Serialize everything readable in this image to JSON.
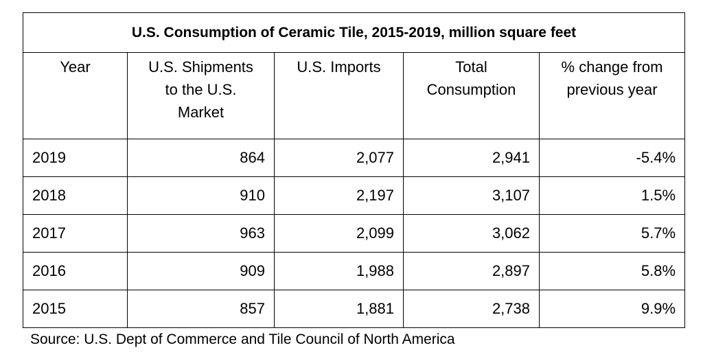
{
  "table": {
    "title": "U.S. Consumption of Ceramic Tile, 2015-2019, million square feet",
    "headers": [
      "Year",
      "U.S. Shipments\nto the U.S.\nMarket",
      "U.S. Imports",
      "Total\nConsumption",
      "% change from\nprevious year"
    ],
    "rows": [
      [
        "2019",
        "864",
        "2,077",
        "2,941",
        "-5.4%"
      ],
      [
        "2018",
        "910",
        "2,197",
        "3,107",
        "1.5%"
      ],
      [
        "2017",
        "963",
        "2,099",
        "3,062",
        "5.7%"
      ],
      [
        "2016",
        "909",
        "1,988",
        "2,897",
        "5.8%"
      ],
      [
        "2015",
        "857",
        "1,881",
        "2,738",
        "9.9%"
      ]
    ]
  },
  "source": "Source: U.S. Dept of Commerce and Tile Council of North America"
}
